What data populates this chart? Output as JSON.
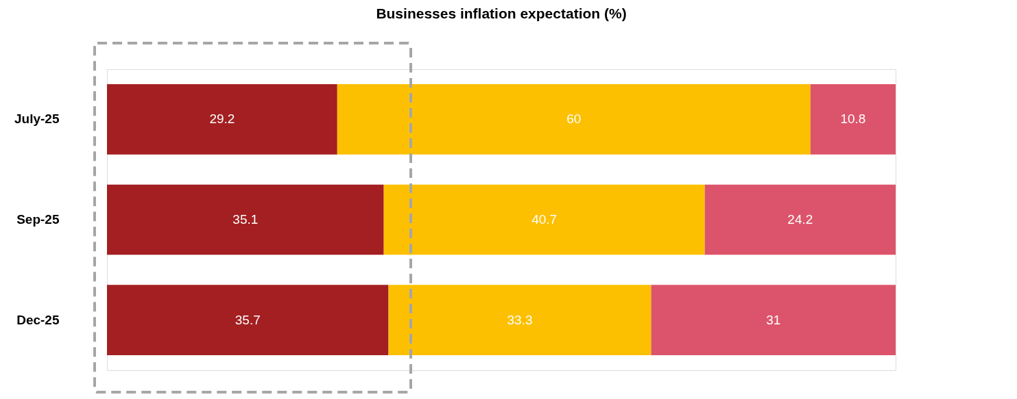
{
  "chart_data": {
    "type": "bar",
    "orientation": "horizontal",
    "stacked": true,
    "title": "Businesses inflation expectation (%)",
    "categories": [
      "July-25",
      "Sep-25",
      "Dec-25"
    ],
    "series": [
      {
        "color": "#a31f21",
        "values": [
          29.2,
          35.1,
          35.7
        ]
      },
      {
        "color": "#fdc000",
        "values": [
          60,
          40.7,
          33.3
        ]
      },
      {
        "color": "#dc546b",
        "values": [
          10.8,
          24.2,
          31
        ]
      }
    ],
    "data_labels": true
  }
}
